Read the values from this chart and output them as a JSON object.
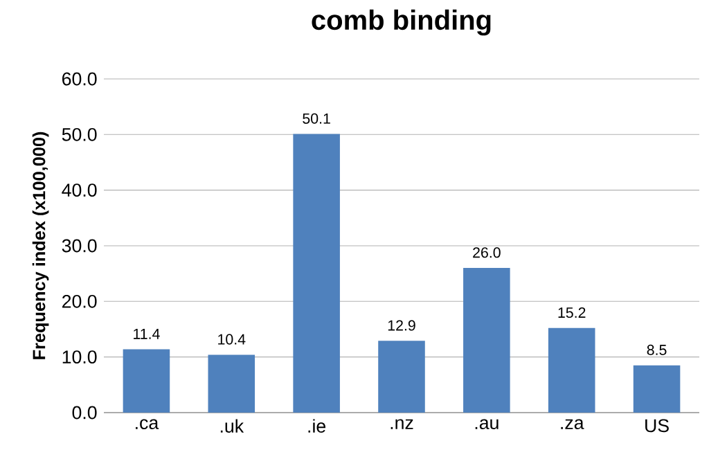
{
  "chart_data": {
    "type": "bar",
    "title": "comb binding",
    "ylabel": "Frequency index (x100,000)",
    "categories": [
      ".ca",
      ".uk",
      ".ie",
      ".nz",
      ".au",
      ".za",
      "US"
    ],
    "values": [
      11.4,
      10.4,
      50.1,
      12.9,
      26.0,
      15.2,
      8.5
    ],
    "color": "#4f81bd",
    "ylim": [
      0,
      60
    ],
    "yticks": [
      {
        "value": 0,
        "label": "0.0"
      },
      {
        "value": 10,
        "label": "10.0"
      },
      {
        "value": 20,
        "label": "20.0"
      },
      {
        "value": 30,
        "label": "30.0"
      },
      {
        "value": 40,
        "label": "40.0"
      },
      {
        "value": 50,
        "label": "50.0"
      },
      {
        "value": 60,
        "label": "60.0"
      }
    ],
    "value_labels": [
      "11.4",
      "10.4",
      "50.1",
      "12.9",
      "26.0",
      "15.2",
      "8.5"
    ],
    "grid": "y"
  }
}
